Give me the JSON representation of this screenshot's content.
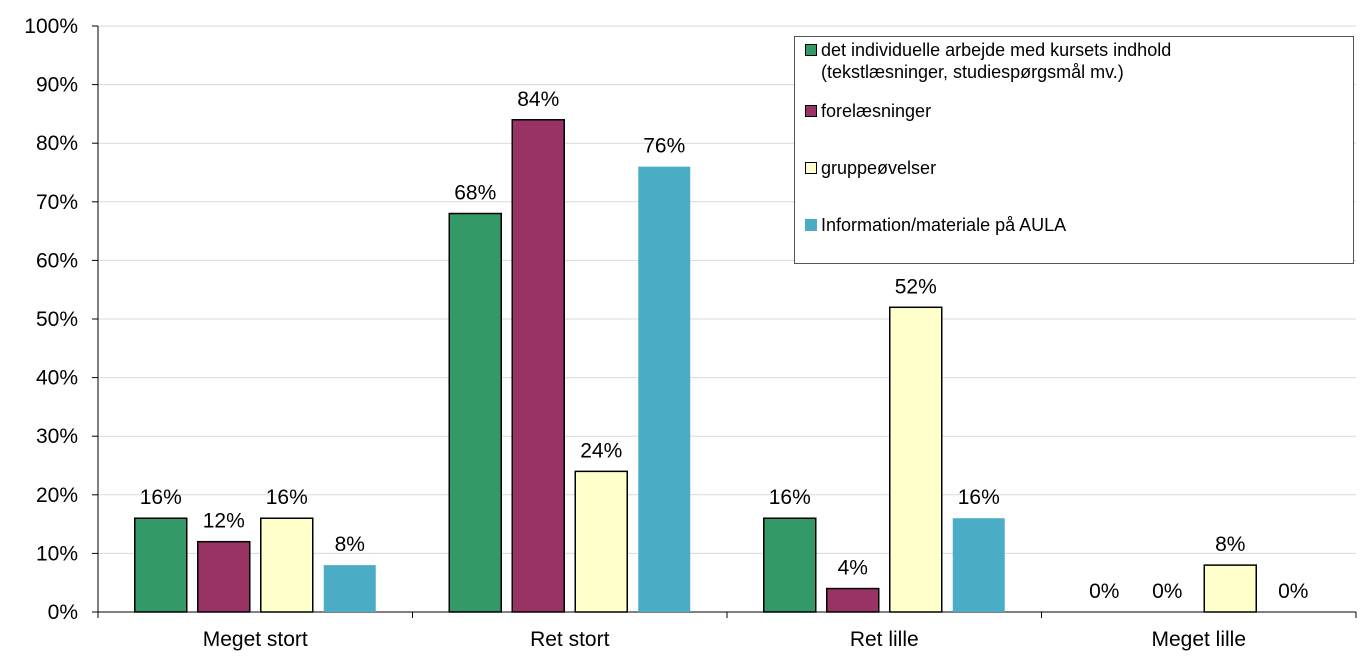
{
  "chart_data": {
    "type": "bar",
    "categories": [
      "Meget stort",
      "Ret stort",
      "Ret lille",
      "Meget lille"
    ],
    "series": [
      {
        "name": "det individuelle arbejde med kursets indhold\n(tekstlæsninger, studiespørgsmål mv.)",
        "values": [
          16,
          68,
          16,
          0
        ],
        "color": "#339966",
        "border": true
      },
      {
        "name": "forelæsninger",
        "values": [
          12,
          84,
          4,
          0
        ],
        "color": "#993366",
        "border": true
      },
      {
        "name": "gruppeøvelser",
        "values": [
          16,
          24,
          52,
          8
        ],
        "color": "#FFFFCC",
        "border": true
      },
      {
        "name": "Information/materiale på AULA",
        "values": [
          8,
          76,
          16,
          0
        ],
        "color": "#4BACC6",
        "border": false
      }
    ],
    "data_labels": [
      [
        "16%",
        "68%",
        "16%",
        "0%"
      ],
      [
        "12%",
        "84%",
        "4%",
        "0%"
      ],
      [
        "16%",
        "24%",
        "52%",
        "8%"
      ],
      [
        "8%",
        "76%",
        "16%",
        "0%"
      ]
    ],
    "yticks": [
      "0%",
      "10%",
      "20%",
      "30%",
      "40%",
      "50%",
      "60%",
      "70%",
      "80%",
      "90%",
      "100%"
    ],
    "ylim": [
      0,
      100
    ],
    "grid": true,
    "legend_position": "top-right"
  }
}
